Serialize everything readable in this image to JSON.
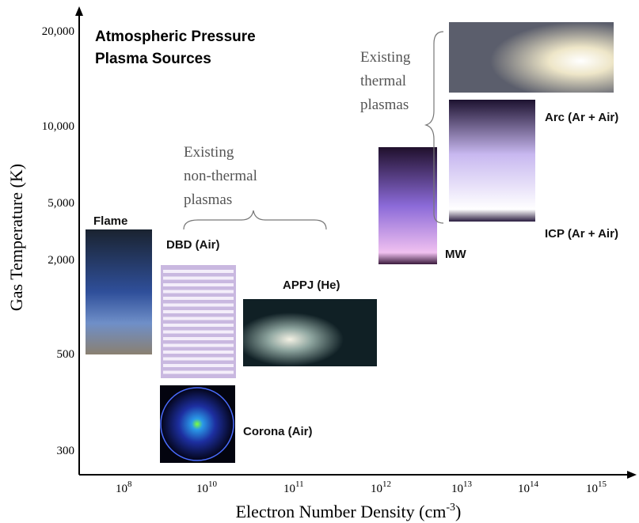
{
  "title": {
    "lines": [
      "Atmospheric Pressure",
      "Plasma Sources"
    ]
  },
  "y_axis": {
    "label": "Gas Temperature (K)",
    "ticks": [
      "20,000",
      "10,000",
      "5,000",
      "2,000",
      "500",
      "300"
    ]
  },
  "x_axis": {
    "label_pre": "Electron Number Density (cm",
    "label_sup": "-3",
    "label_post": ")",
    "ticks": [
      {
        "base": "10",
        "exp": "8"
      },
      {
        "base": "10",
        "exp": "10"
      },
      {
        "base": "10",
        "exp": "11"
      },
      {
        "base": "10",
        "exp": "12"
      },
      {
        "base": "10",
        "exp": "13"
      },
      {
        "base": "10",
        "exp": "14"
      },
      {
        "base": "10",
        "exp": "15"
      }
    ]
  },
  "sources": [
    "Flame",
    "DBD (Air)",
    "APPJ (He)",
    "Corona (Air)",
    "MW",
    "Arc (Ar + Air)",
    "ICP (Ar + Air)"
  ],
  "annotations": {
    "non_thermal": [
      "Existing",
      "non-thermal",
      "plasmas"
    ],
    "thermal": [
      "Existing",
      "thermal",
      "plasmas"
    ]
  }
}
